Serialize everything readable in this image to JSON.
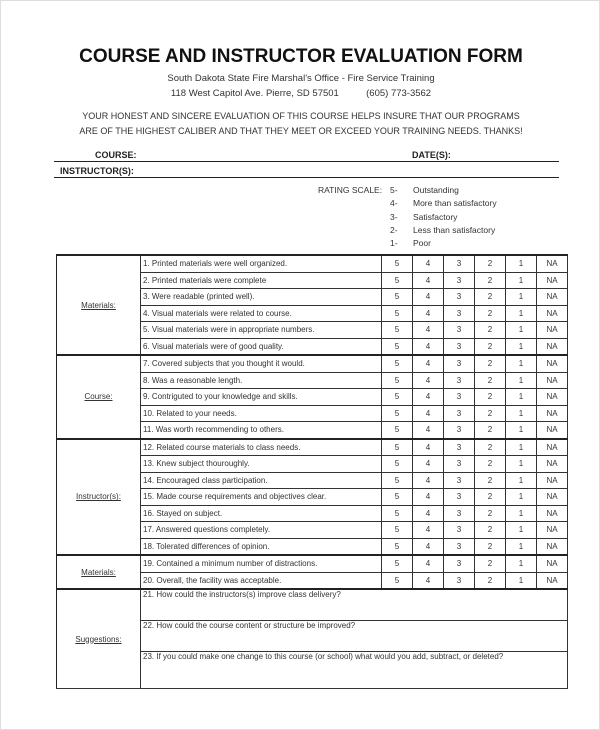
{
  "title": "COURSE AND INSTRUCTOR EVALUATION FORM",
  "org": "South Dakota State Fire Marshal's Office - Fire Service Training",
  "address": "118 West Capitol Ave. Pierre, SD 57501",
  "phone": "(605) 773-3562",
  "intro": [
    "YOUR HONEST AND SINCERE EVALUATION OF THIS COURSE HELPS INSURE THAT OUR PROGRAMS",
    "ARE OF THE HIGHEST CALIBER AND THAT THEY MEET OR EXCEED YOUR TRAINING NEEDS. THANKS!"
  ],
  "fields": {
    "course": "COURSE:",
    "dates": "DATE(S):",
    "instructors": "INSTRUCTOR(S):"
  },
  "rating_scale": {
    "label": "RATING SCALE:",
    "items": [
      {
        "n": "5-",
        "t": "Outstanding"
      },
      {
        "n": "4-",
        "t": "More than satisfactory"
      },
      {
        "n": "3-",
        "t": "Satisfactory"
      },
      {
        "n": "2-",
        "t": "Less than satisfactory"
      },
      {
        "n": "1-",
        "t": "Poor"
      }
    ]
  },
  "ratings": [
    "5",
    "4",
    "3",
    "2",
    "1",
    "NA"
  ],
  "sections": [
    {
      "label": "Materials:",
      "items": [
        "1. Printed materials were well organized.",
        "2. Printed materials were complete",
        "3. Were readable (printed well).",
        "4. Visual materials were related to course.",
        "5. Visual materials were in appropriate numbers.",
        "6. Visual materials were of good quality."
      ]
    },
    {
      "label": "Course:",
      "items": [
        "7. Covered subjects that you thought it would.",
        "8. Was a reasonable length.",
        "9. Contriguted to your knowledge and skills.",
        "10. Related to your needs.",
        "11. Was worth recommending to others."
      ]
    },
    {
      "label": "Instructor(s):",
      "items": [
        "12. Related course materials to class needs.",
        "13. Knew subject thouroughly.",
        "14. Encouraged class participation.",
        "15. Made course requirements and objectives clear.",
        "16. Stayed on subject.",
        "17. Answered questions completely.",
        "18. Tolerated differences of opinion."
      ]
    },
    {
      "label": "Materials:",
      "items": [
        "19. Contained a minimum number of distractions.",
        "20. Overall, the facility was acceptable."
      ]
    }
  ],
  "suggestions": {
    "label": "Suggestions:",
    "items": [
      "21. How could the instructors(s) improve class delivery?",
      "22. How could the course content or structure be improved?",
      "23. If you could make one change to this course (or school) what would you add, subtract, or deleted?"
    ]
  }
}
